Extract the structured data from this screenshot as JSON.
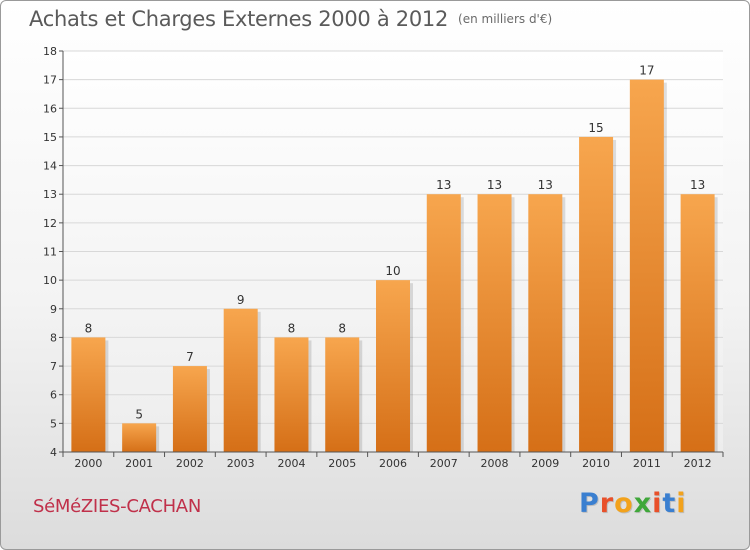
{
  "header": {
    "title": "Achats et Charges Externes 2000 à 2012",
    "subtitle": "(en milliers d'€)"
  },
  "footer": {
    "commune": "SéMéZIES-CACHAN",
    "logo_letters": [
      "P",
      "r",
      "o",
      "x",
      "i",
      "t",
      "i"
    ],
    "logo_colors": [
      "#3a7fd0",
      "#e8502a",
      "#f2a21c",
      "#3fa73a",
      "#e8502a",
      "#3a7fd0",
      "#f2a21c"
    ]
  },
  "chart_data": {
    "type": "bar",
    "title": "Achats et Charges Externes 2000 à 2012",
    "subtitle": "(en milliers d'€)",
    "xlabel": "",
    "ylabel": "",
    "categories": [
      "2000",
      "2001",
      "2002",
      "2003",
      "2004",
      "2005",
      "2006",
      "2007",
      "2008",
      "2009",
      "2010",
      "2011",
      "2012"
    ],
    "values": [
      8,
      5,
      7,
      9,
      8,
      8,
      10,
      13,
      13,
      13,
      15,
      17,
      13
    ],
    "ylim": [
      4,
      18
    ],
    "yticks": [
      4,
      5,
      6,
      7,
      8,
      9,
      10,
      11,
      12,
      13,
      14,
      15,
      16,
      17,
      18
    ],
    "grid": true,
    "legend": "none",
    "colors": {
      "bar_top": "#f7a64e",
      "bar_bottom": "#d56f17",
      "grid": "#d8d8d8",
      "axis": "#555555"
    }
  }
}
